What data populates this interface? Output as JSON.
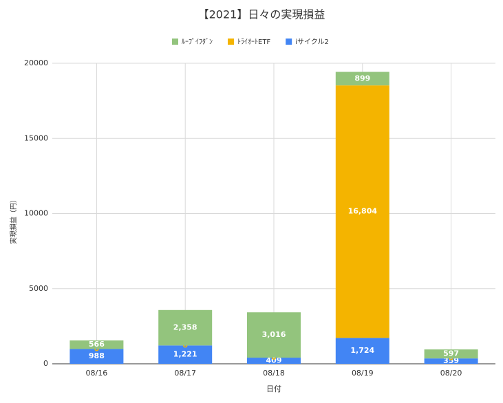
{
  "chart_data": {
    "type": "bar",
    "stacked": true,
    "title": "【2021】日々の実現損益",
    "xlabel": "日付",
    "ylabel": "実現損益（円）",
    "categories": [
      "08/16",
      "08/17",
      "08/18",
      "08/19",
      "08/20"
    ],
    "series": [
      {
        "name": "iサイクル2",
        "color": "#4285f4",
        "values": [
          988,
          1221,
          409,
          1724,
          359
        ],
        "value_labels": [
          "988",
          "1,221",
          "409",
          "1,724",
          "359"
        ]
      },
      {
        "name": "ﾄﾗｲｵｰﾄETF",
        "color": "#f4b400",
        "values": [
          0,
          0,
          0,
          16804,
          0
        ],
        "value_labels": [
          "0",
          "0",
          "0",
          "16,804",
          "0"
        ]
      },
      {
        "name": "ﾙｰﾌﾟｲﾌﾀﾞﾝ",
        "color": "#93c47d",
        "values": [
          566,
          2358,
          3016,
          899,
          597
        ],
        "value_labels": [
          "566",
          "2,358",
          "3,016",
          "899",
          "597"
        ]
      }
    ],
    "legend_order": [
      2,
      1,
      0
    ],
    "ylim": [
      0,
      20000
    ],
    "yticks": [
      0,
      5000,
      10000,
      15000,
      20000
    ],
    "grid": true
  }
}
